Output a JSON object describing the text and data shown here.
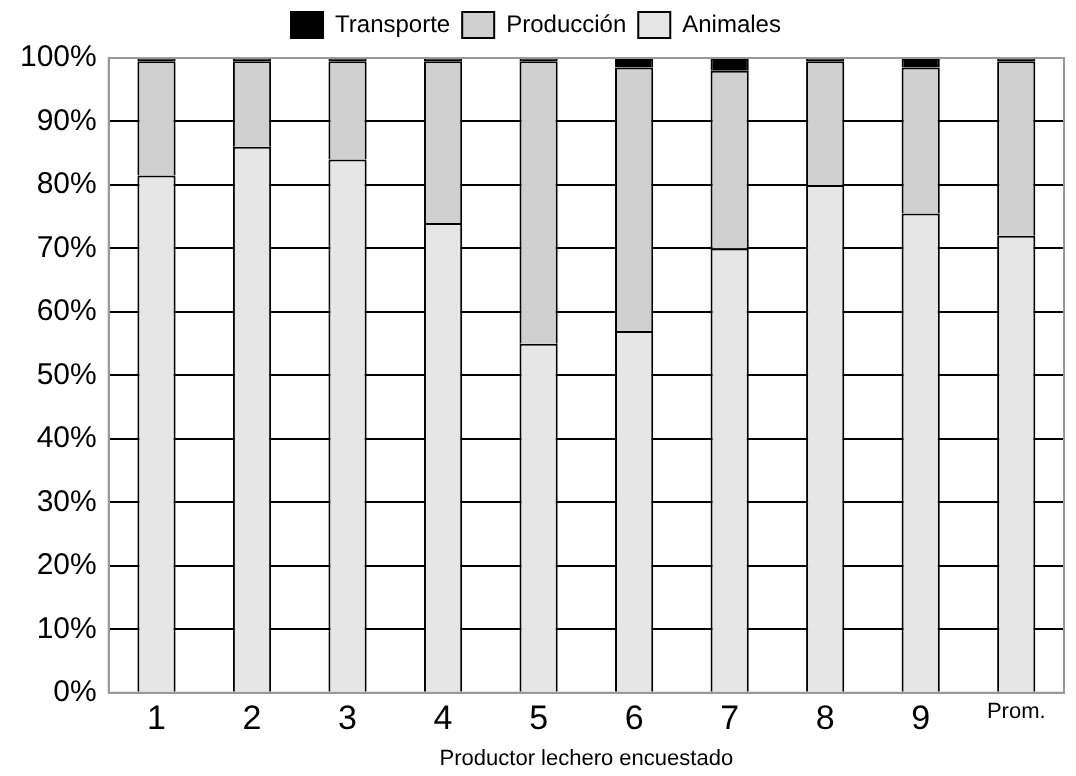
{
  "chart_data": {
    "type": "bar",
    "stacked": true,
    "xlabel": "Productor lechero encuestado",
    "categories": [
      "1",
      "2",
      "3",
      "4",
      "5",
      "6",
      "7",
      "8",
      "9",
      "Prom."
    ],
    "series": [
      {
        "name": "Animales",
        "color": "#e6e6e6",
        "values": [
          81.5,
          86,
          84,
          74,
          55,
          57,
          70,
          80,
          75.5,
          72
        ]
      },
      {
        "name": "Producción",
        "color": "#d0d0d0",
        "values": [
          18,
          13.5,
          15.5,
          25.5,
          44.5,
          41.5,
          28,
          19.5,
          23,
          27.5
        ]
      },
      {
        "name": "Transporte",
        "color": "#000000",
        "values": [
          0.5,
          0.5,
          0.5,
          0.5,
          0.5,
          1.5,
          2,
          0.5,
          1.5,
          0.5
        ]
      }
    ],
    "ylim": [
      0,
      100
    ],
    "yticks": [
      {
        "value": 0,
        "label": "0%"
      },
      {
        "value": 10,
        "label": "10%"
      },
      {
        "value": 20,
        "label": "20%"
      },
      {
        "value": 30,
        "label": "30%"
      },
      {
        "value": 40,
        "label": "40%"
      },
      {
        "value": 50,
        "label": "50%"
      },
      {
        "value": 60,
        "label": "60%"
      },
      {
        "value": 70,
        "label": "70%"
      },
      {
        "value": 80,
        "label": "80%"
      },
      {
        "value": 90,
        "label": "90%"
      },
      {
        "value": 100,
        "label": "100%"
      }
    ],
    "grid": "y",
    "legend": "top"
  }
}
